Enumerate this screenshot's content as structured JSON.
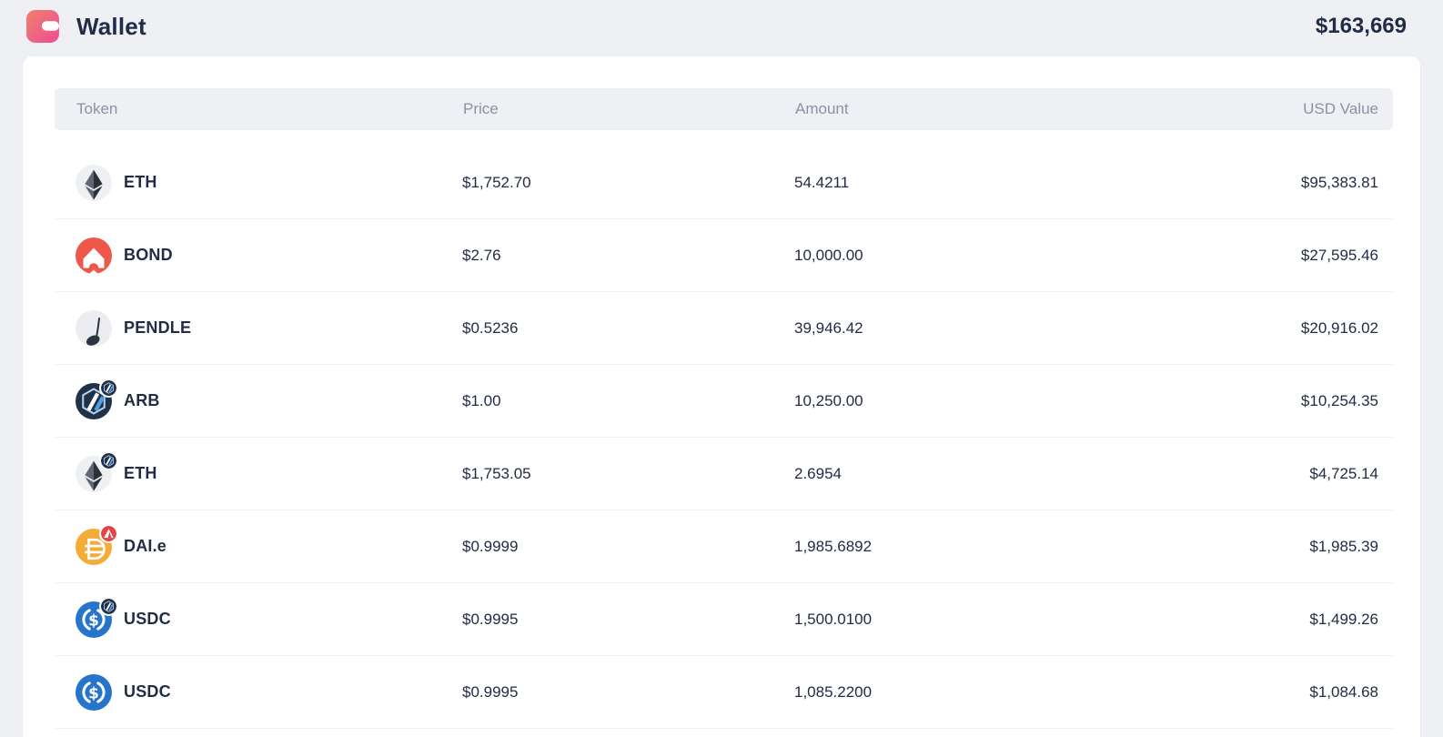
{
  "header": {
    "icon": "wallet-icon",
    "title": "Wallet",
    "total_usd": "$163,669"
  },
  "table": {
    "columns": [
      "Token",
      "Price",
      "Amount",
      "USD Value"
    ],
    "rows": [
      {
        "symbol": "ETH",
        "icon": "eth-icon",
        "badge": null,
        "price": "$1,752.70",
        "amount": "54.4211",
        "usd_value": "$95,383.81"
      },
      {
        "symbol": "BOND",
        "icon": "bond-icon",
        "badge": null,
        "price": "$2.76",
        "amount": "10,000.00",
        "usd_value": "$27,595.46"
      },
      {
        "symbol": "PENDLE",
        "icon": "pendle-icon",
        "badge": null,
        "price": "$0.5236",
        "amount": "39,946.42",
        "usd_value": "$20,916.02"
      },
      {
        "symbol": "ARB",
        "icon": "arb-icon",
        "badge": "arbitrum-badge",
        "price": "$1.00",
        "amount": "10,250.00",
        "usd_value": "$10,254.35"
      },
      {
        "symbol": "ETH",
        "icon": "eth-icon",
        "badge": "arbitrum-badge",
        "price": "$1,753.05",
        "amount": "2.6954",
        "usd_value": "$4,725.14"
      },
      {
        "symbol": "DAI.e",
        "icon": "dai-icon",
        "badge": "avalanche-badge",
        "price": "$0.9999",
        "amount": "1,985.6892",
        "usd_value": "$1,985.39"
      },
      {
        "symbol": "USDC",
        "icon": "usdc-icon",
        "badge": "arbitrum-badge",
        "price": "$0.9995",
        "amount": "1,500.0100",
        "usd_value": "$1,499.26"
      },
      {
        "symbol": "USDC",
        "icon": "usdc-icon",
        "badge": null,
        "price": "$0.9995",
        "amount": "1,085.2200",
        "usd_value": "$1,084.68"
      }
    ]
  },
  "colors": {
    "page_bg": "#EEF0F4",
    "card_bg": "#FFFFFF",
    "text_primary": "#232C45",
    "text_muted": "#8B92A5",
    "wallet_gradient_start": "#F0806B",
    "wallet_gradient_end": "#EC4D95",
    "bond_red": "#EE584A",
    "arbitrum_navy": "#213147",
    "arbitrum_blue": "#4F9FE8",
    "dai_gold": "#F5AC37",
    "avalanche_red": "#E84142",
    "usdc_blue": "#2775CA"
  }
}
